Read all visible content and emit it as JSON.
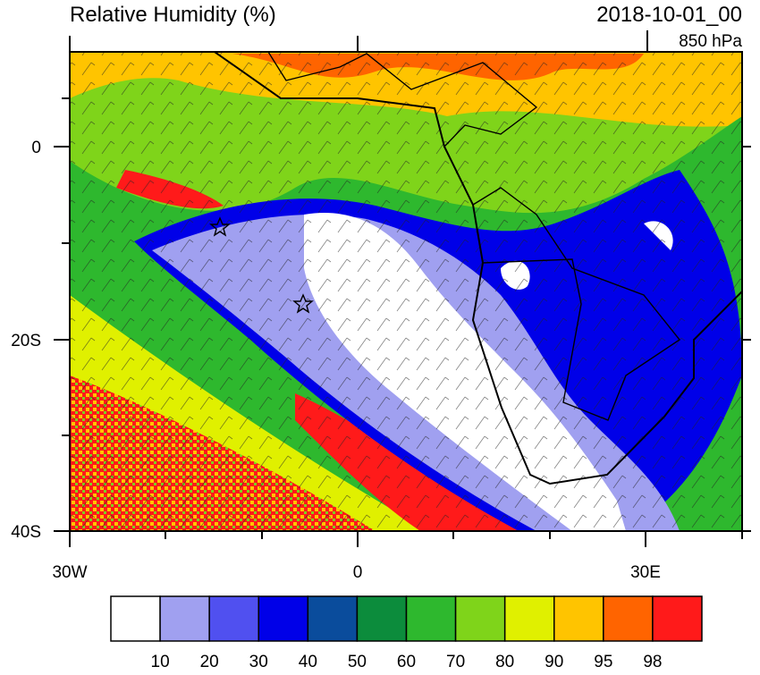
{
  "title": "Relative Humidity (%)",
  "time": "2018-10-01_00",
  "level": "850 hPa",
  "lon_labels": [
    "30W",
    "0",
    "30E"
  ],
  "lat_labels": [
    "0",
    "20S",
    "40S"
  ],
  "colorbar": {
    "colors": [
      "#ffffff",
      "#a0a0f0",
      "#5050f0",
      "#0000e8",
      "#0a4c9c",
      "#0c8c3c",
      "#2eb82e",
      "#7fd41a",
      "#e0f000",
      "#ffc400",
      "#ff6400",
      "#ff1a1a"
    ],
    "labels": [
      10,
      20,
      30,
      40,
      50,
      60,
      70,
      80,
      90,
      95,
      98
    ]
  }
}
